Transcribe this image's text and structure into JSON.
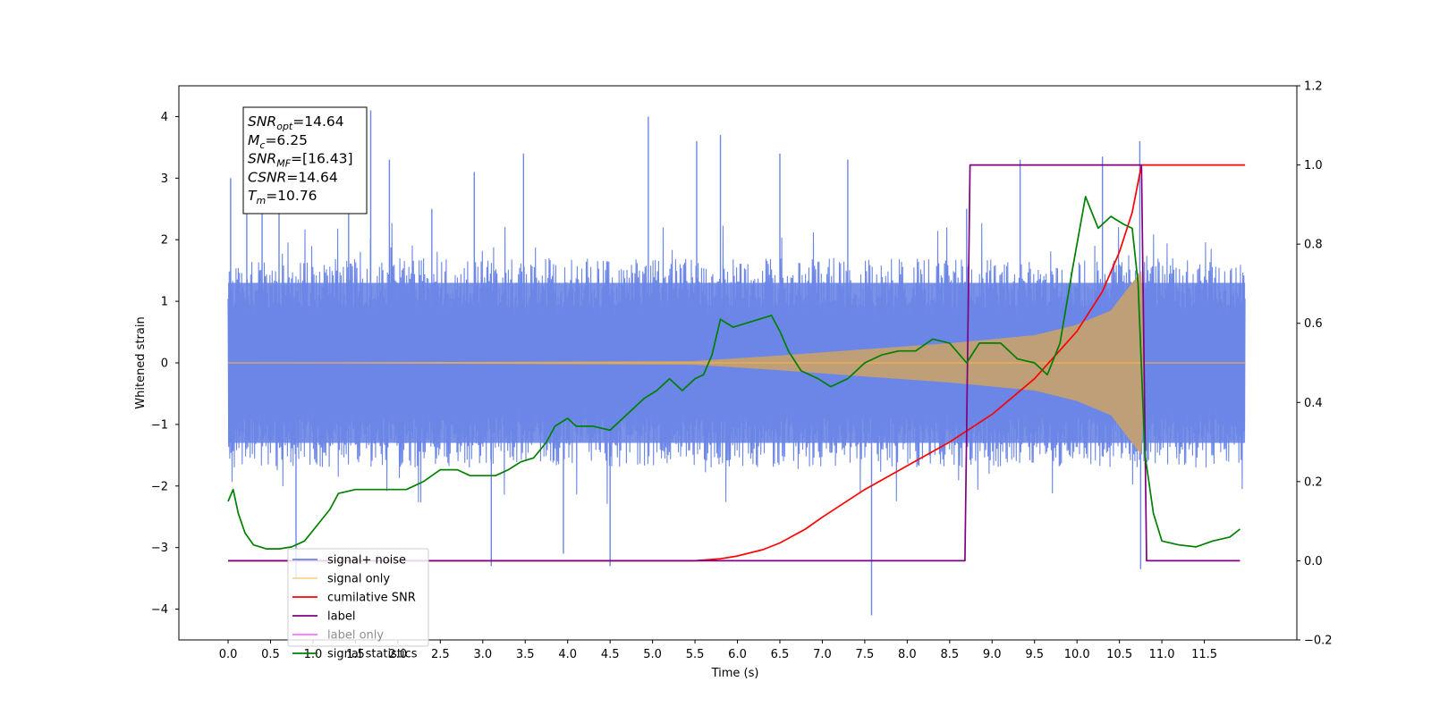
{
  "chart_data": {
    "type": "line",
    "xlabel": "Time (s)",
    "ylabel": "Whitened strain",
    "xlim": [
      -0.58,
      12.59
    ],
    "ylim": [
      -4.5,
      4.5
    ],
    "y2lim": [
      -0.2,
      1.2
    ],
    "x_ticks": [
      "0.0",
      "0.5",
      "1.0",
      "1.5",
      "2.0",
      "2.5",
      "3.0",
      "3.5",
      "4.0",
      "4.5",
      "5.0",
      "5.5",
      "6.0",
      "6.5",
      "7.0",
      "7.5",
      "8.0",
      "8.5",
      "9.0",
      "9.5",
      "10.0",
      "10.5",
      "11.0",
      "11.5"
    ],
    "y_ticks": [
      "4",
      "3",
      "2",
      "1",
      "0",
      "−1",
      "−2",
      "−3",
      "−4"
    ],
    "y2_ticks": [
      "1.2",
      "1.0",
      "0.8",
      "0.6",
      "0.4",
      "0.2",
      "0.0",
      "−0.2"
    ],
    "legend_position": "lower-left",
    "annotation": {
      "lines": [
        {
          "sym": "SNR",
          "sub": "opt",
          "val": "=14.64"
        },
        {
          "sym": "M",
          "sub": "c",
          "val": "=6.25"
        },
        {
          "sym": "SNR",
          "sub": "MF",
          "val": "=[16.43]"
        },
        {
          "sym": "CSNR",
          "sub": "",
          "val": "=14.64"
        },
        {
          "sym": "T",
          "sub": "m",
          "val": "=10.76"
        }
      ]
    },
    "noise_spikes": [
      {
        "x": 0.03,
        "y": 3.0
      },
      {
        "x": 0.22,
        "y": 2.5
      },
      {
        "x": 0.4,
        "y": 3.2
      },
      {
        "x": 0.6,
        "y": 2.9
      },
      {
        "x": 0.8,
        "y": -3.5
      },
      {
        "x": 1.42,
        "y": 3.8
      },
      {
        "x": 1.68,
        "y": 4.1
      },
      {
        "x": 1.9,
        "y": 3.3
      },
      {
        "x": 2.4,
        "y": 2.5
      },
      {
        "x": 2.9,
        "y": 3.1
      },
      {
        "x": 3.1,
        "y": -3.3
      },
      {
        "x": 3.48,
        "y": 3.4
      },
      {
        "x": 3.95,
        "y": -3.1
      },
      {
        "x": 4.5,
        "y": -3.3
      },
      {
        "x": 4.95,
        "y": 4.0
      },
      {
        "x": 5.52,
        "y": 3.6
      },
      {
        "x": 5.8,
        "y": 3.7
      },
      {
        "x": 6.5,
        "y": 3.4
      },
      {
        "x": 7.3,
        "y": 3.3
      },
      {
        "x": 7.58,
        "y": -4.1
      },
      {
        "x": 8.7,
        "y": 2.5
      },
      {
        "x": 9.33,
        "y": 3.3
      },
      {
        "x": 10.3,
        "y": 3.35
      },
      {
        "x": 10.74,
        "y": 3.6
      },
      {
        "x": 10.75,
        "y": -3.35
      }
    ],
    "series": [
      {
        "name": "signal+ noise",
        "color": "#6b86e6",
        "axis": "left",
        "kind": "noise",
        "x_range": [
          0.0,
          11.98
        ],
        "envelope": [
          -1.6,
          1.6
        ]
      },
      {
        "name": "signal only",
        "color": "#ffb347",
        "axis": "left",
        "kind": "chirp",
        "x_range": [
          0.0,
          11.98
        ],
        "merger_time": 10.76,
        "envelope_points": [
          [
            0.0,
            0.0
          ],
          [
            5.5,
            0.03
          ],
          [
            6.5,
            0.12
          ],
          [
            7.5,
            0.22
          ],
          [
            8.5,
            0.32
          ],
          [
            9.5,
            0.45
          ],
          [
            10.0,
            0.62
          ],
          [
            10.4,
            0.85
          ],
          [
            10.65,
            1.3
          ],
          [
            10.76,
            1.5
          ],
          [
            10.8,
            0.0
          ],
          [
            11.98,
            0.0
          ]
        ]
      },
      {
        "name": "cumilative SNR",
        "color": "#ff0000",
        "axis": "right",
        "x": [
          0.0,
          5.5,
          5.8,
          6.0,
          6.3,
          6.5,
          6.8,
          7.0,
          7.5,
          8.0,
          8.5,
          9.0,
          9.5,
          10.0,
          10.3,
          10.5,
          10.65,
          10.76,
          11.98
        ],
        "values": [
          0.0,
          0.0,
          0.005,
          0.012,
          0.028,
          0.045,
          0.08,
          0.11,
          0.18,
          0.24,
          0.3,
          0.37,
          0.46,
          0.58,
          0.68,
          0.78,
          0.88,
          1.0,
          1.0
        ]
      },
      {
        "name": "label",
        "color": "#800080",
        "axis": "right",
        "x": [
          0.0,
          8.68,
          8.74,
          10.76,
          10.82,
          11.92
        ],
        "values": [
          0.0,
          0.0,
          1.0,
          1.0,
          0.0,
          0.0
        ]
      },
      {
        "name": "label only",
        "color": "#ff00ff",
        "axis": "right",
        "hidden": true,
        "x": [],
        "values": []
      },
      {
        "name": "signal statistics",
        "color": "#008000",
        "axis": "right",
        "x": [
          0.0,
          0.06,
          0.12,
          0.2,
          0.3,
          0.45,
          0.6,
          0.75,
          0.9,
          1.05,
          1.2,
          1.3,
          1.5,
          1.7,
          1.9,
          2.1,
          2.3,
          2.5,
          2.7,
          2.85,
          3.0,
          3.15,
          3.3,
          3.45,
          3.6,
          3.75,
          3.85,
          4.0,
          4.1,
          4.3,
          4.5,
          4.7,
          4.9,
          5.05,
          5.2,
          5.35,
          5.5,
          5.6,
          5.7,
          5.8,
          5.95,
          6.1,
          6.25,
          6.4,
          6.5,
          6.6,
          6.75,
          6.95,
          7.1,
          7.3,
          7.5,
          7.7,
          7.9,
          8.1,
          8.3,
          8.5,
          8.7,
          8.85,
          9.0,
          9.1,
          9.3,
          9.5,
          9.65,
          9.8,
          9.95,
          10.1,
          10.25,
          10.4,
          10.55,
          10.65,
          10.72,
          10.8,
          10.9,
          11.0,
          11.2,
          11.4,
          11.6,
          11.8,
          11.92
        ],
        "values": [
          0.15,
          0.18,
          0.12,
          0.07,
          0.04,
          0.03,
          0.03,
          0.035,
          0.05,
          0.09,
          0.13,
          0.17,
          0.18,
          0.18,
          0.18,
          0.18,
          0.2,
          0.23,
          0.23,
          0.215,
          0.215,
          0.215,
          0.23,
          0.25,
          0.26,
          0.3,
          0.34,
          0.36,
          0.34,
          0.34,
          0.33,
          0.37,
          0.41,
          0.43,
          0.46,
          0.43,
          0.46,
          0.47,
          0.52,
          0.61,
          0.59,
          0.6,
          0.61,
          0.62,
          0.58,
          0.53,
          0.48,
          0.46,
          0.44,
          0.46,
          0.5,
          0.52,
          0.53,
          0.53,
          0.56,
          0.55,
          0.5,
          0.55,
          0.55,
          0.55,
          0.51,
          0.5,
          0.47,
          0.55,
          0.74,
          0.92,
          0.84,
          0.87,
          0.85,
          0.84,
          0.7,
          0.27,
          0.12,
          0.05,
          0.04,
          0.035,
          0.05,
          0.06,
          0.08
        ]
      }
    ]
  }
}
